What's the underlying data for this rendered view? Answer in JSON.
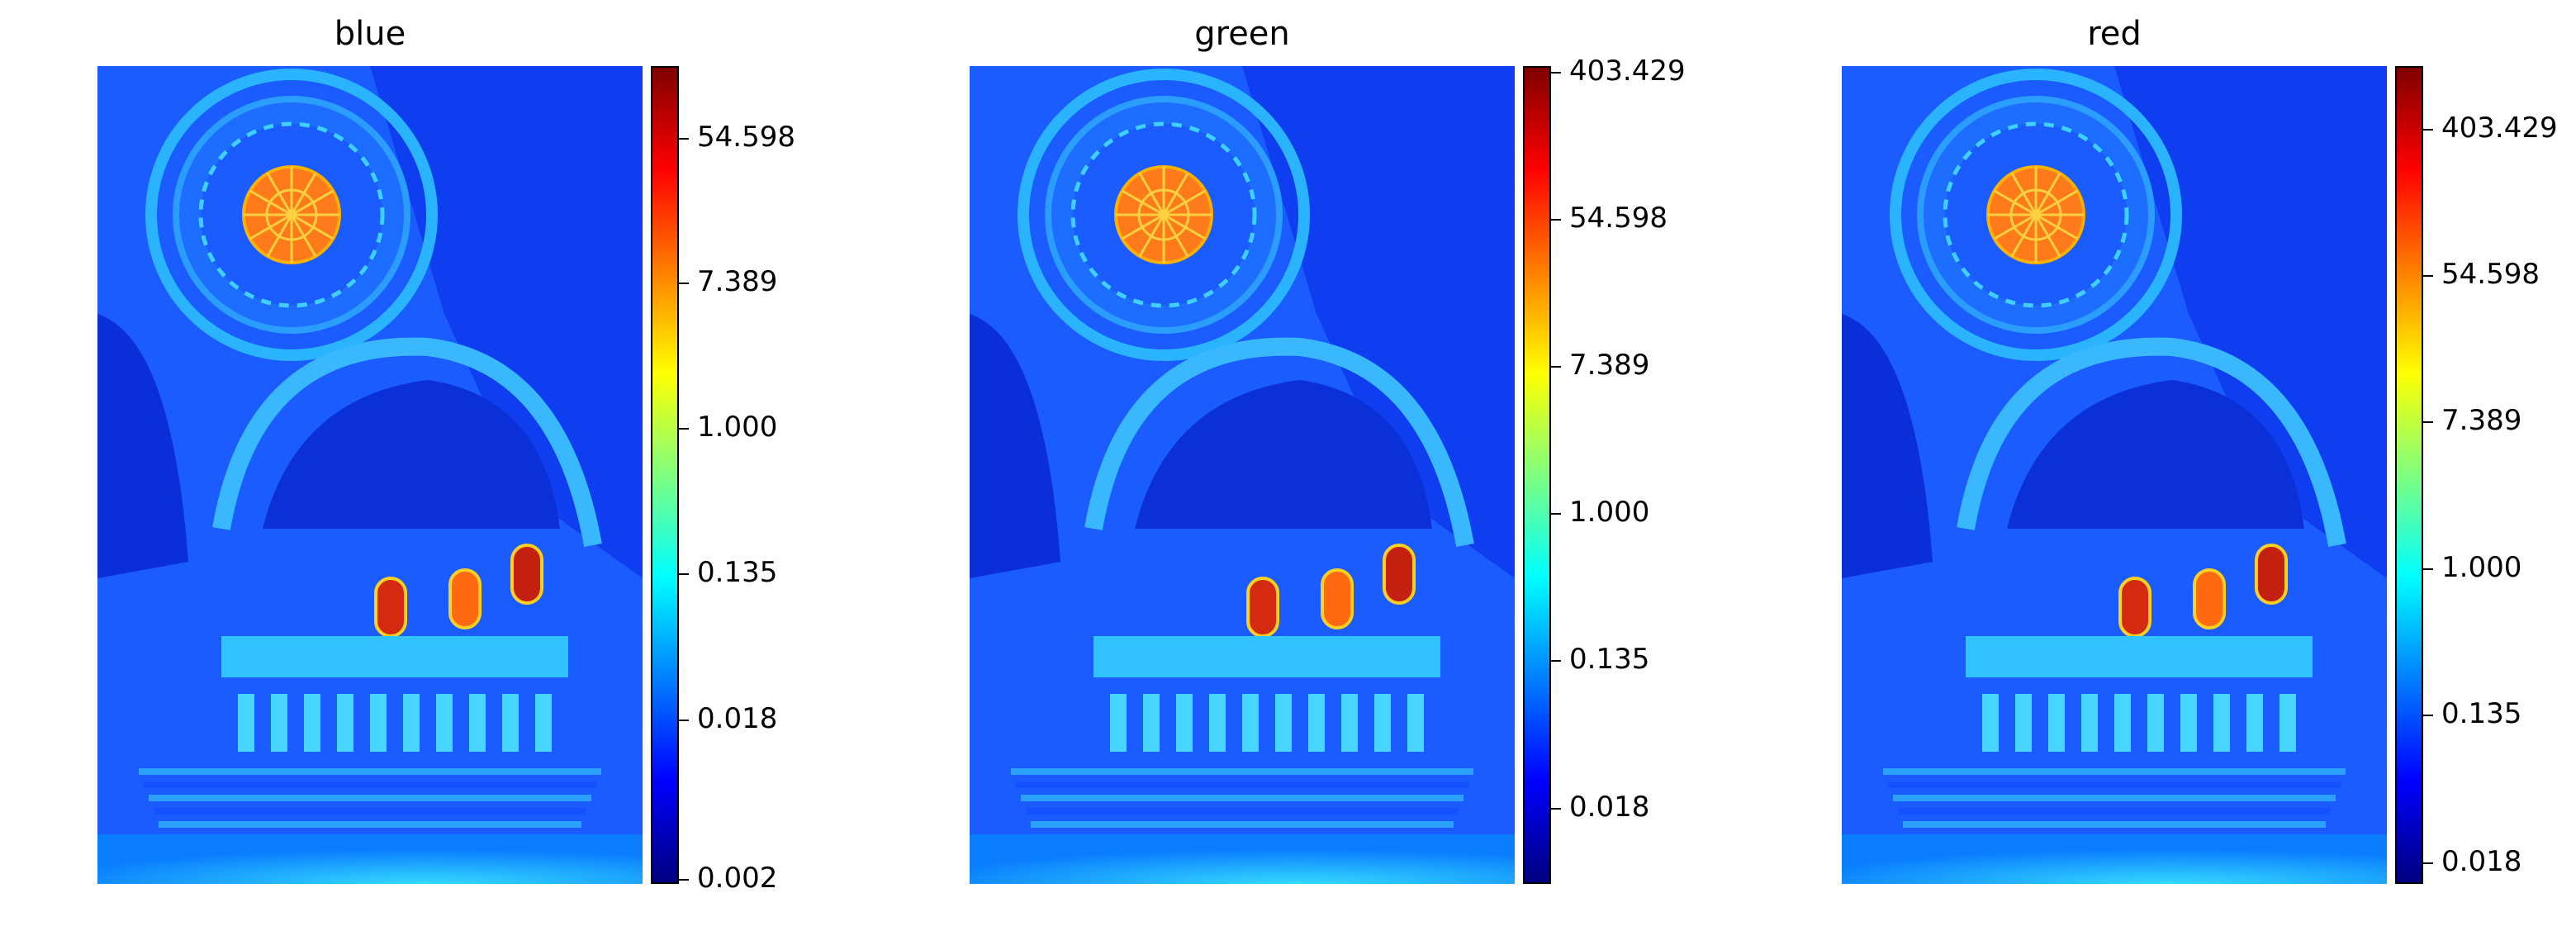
{
  "chart_data": [
    {
      "type": "heatmap",
      "title": "blue",
      "colormap": "jet",
      "scale": "log",
      "colorbar": {
        "ticks": [
          "54.598",
          "7.389",
          "1.000",
          "0.135",
          "0.018",
          "0.002"
        ],
        "range": [
          0.0019,
          148
        ]
      },
      "axes": "off"
    },
    {
      "type": "heatmap",
      "title": "green",
      "colormap": "jet",
      "scale": "log",
      "colorbar": {
        "ticks": [
          "403.429",
          "54.598",
          "7.389",
          "1.000",
          "0.135",
          "0.018"
        ],
        "range": [
          0.0065,
          440
        ]
      },
      "axes": "off"
    },
    {
      "type": "heatmap",
      "title": "red",
      "colormap": "jet",
      "scale": "log",
      "colorbar": {
        "ticks": [
          "403.429",
          "54.598",
          "7.389",
          "1.000",
          "0.135",
          "0.018"
        ],
        "range": [
          0.0135,
          960
        ]
      },
      "axes": "off"
    }
  ],
  "colors": {
    "jet": [
      "#00007f",
      "#0000ff",
      "#007fff",
      "#00ffff",
      "#7fff7f",
      "#ffff00",
      "#ff7f00",
      "#ff0000",
      "#7f0000"
    ],
    "background_blue": "#1a5cff",
    "dome_orange": "#ff7a1a",
    "window_red": "#d42a10"
  }
}
